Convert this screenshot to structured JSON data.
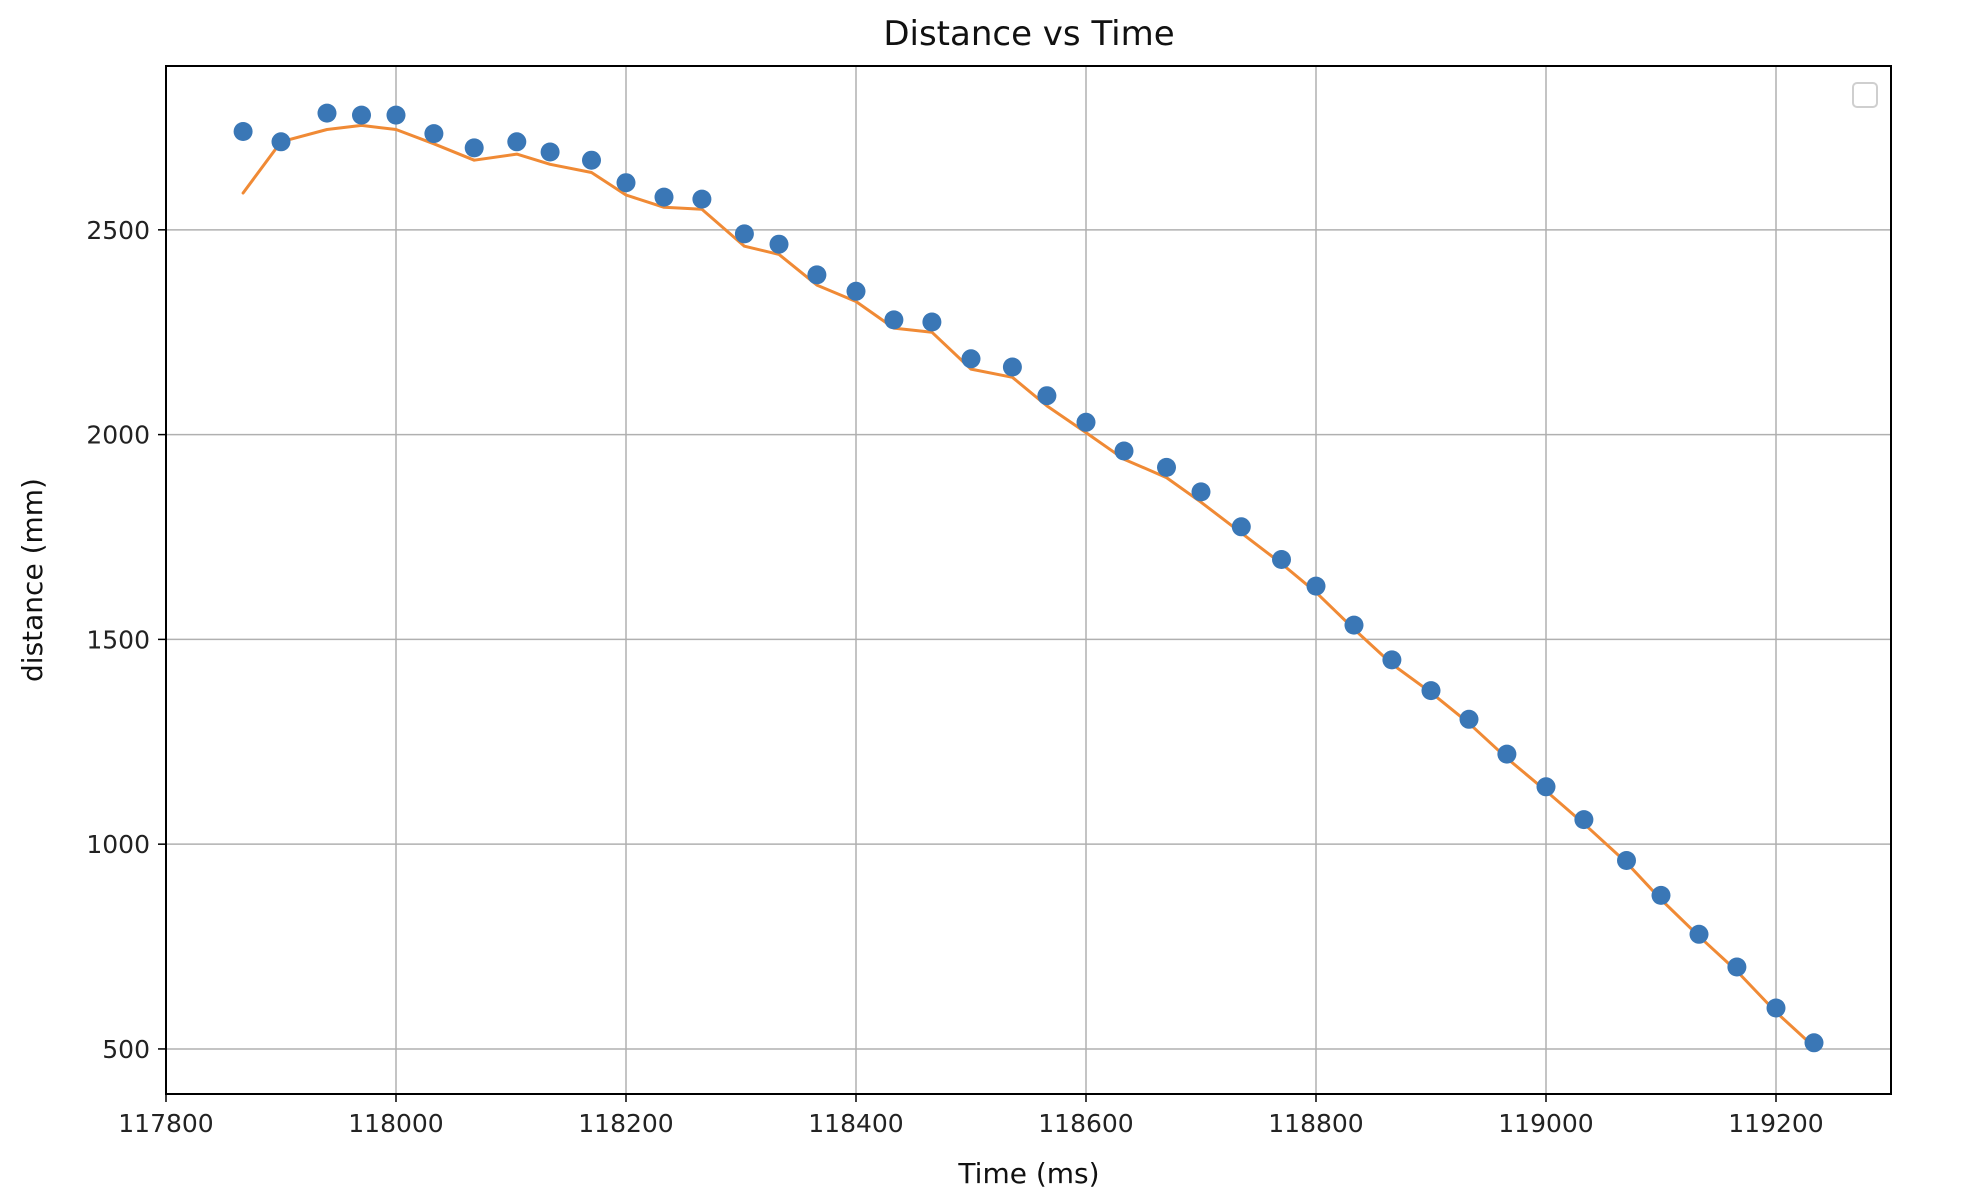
{
  "chart_data": {
    "type": "scatter",
    "title": "Distance vs Time",
    "xlabel": "Time (ms)",
    "ylabel": "distance (mm)",
    "xlim": [
      117800,
      119300
    ],
    "ylim": [
      390,
      2900
    ],
    "xticks": [
      117800,
      118000,
      118200,
      118400,
      118600,
      118800,
      119000,
      119200
    ],
    "yticks": [
      500,
      1000,
      1500,
      2000,
      2500
    ],
    "grid": true,
    "legend": "top-right (empty)",
    "series": [
      {
        "type": "scatter",
        "color": "#3a77b6",
        "x": [
          117867,
          117900,
          117940,
          117970,
          118000,
          118033,
          118068,
          118105,
          118134,
          118170,
          118200,
          118233,
          118266,
          118303,
          118333,
          118366,
          118400,
          118433,
          118466,
          118500,
          118536,
          118566,
          118600,
          118633,
          118670,
          118700,
          118735,
          118770,
          118800,
          118833,
          118866,
          118900,
          118933,
          118966,
          119000,
          119033,
          119070,
          119100,
          119133,
          119166,
          119200,
          119233
        ],
        "y": [
          2740,
          2715,
          2785,
          2780,
          2780,
          2735,
          2700,
          2715,
          2690,
          2670,
          2615,
          2580,
          2575,
          2490,
          2465,
          2390,
          2350,
          2280,
          2275,
          2185,
          2165,
          2095,
          2030,
          1960,
          1920,
          1860,
          1775,
          1695,
          1630,
          1535,
          1450,
          1375,
          1305,
          1220,
          1140,
          1060,
          960,
          875,
          780,
          700,
          600,
          515
        ]
      },
      {
        "type": "line",
        "color": "#f08a35",
        "x": [
          117867,
          117900,
          117940,
          117970,
          118000,
          118033,
          118068,
          118105,
          118134,
          118170,
          118200,
          118233,
          118266,
          118303,
          118333,
          118366,
          118400,
          118433,
          118466,
          118500,
          118536,
          118566,
          118600,
          118633,
          118670,
          118700,
          118735,
          118770,
          118800,
          118833,
          118866,
          118900,
          118933,
          118966,
          119000,
          119033,
          119070,
          119100,
          119133,
          119166,
          119200,
          119233
        ],
        "y": [
          2590,
          2715,
          2745,
          2755,
          2745,
          2710,
          2670,
          2685,
          2660,
          2640,
          2585,
          2555,
          2550,
          2460,
          2440,
          2365,
          2325,
          2260,
          2250,
          2160,
          2140,
          2070,
          2005,
          1940,
          1895,
          1835,
          1760,
          1685,
          1615,
          1525,
          1440,
          1370,
          1295,
          1210,
          1130,
          1050,
          955,
          865,
          775,
          690,
          590,
          505
        ]
      }
    ]
  }
}
